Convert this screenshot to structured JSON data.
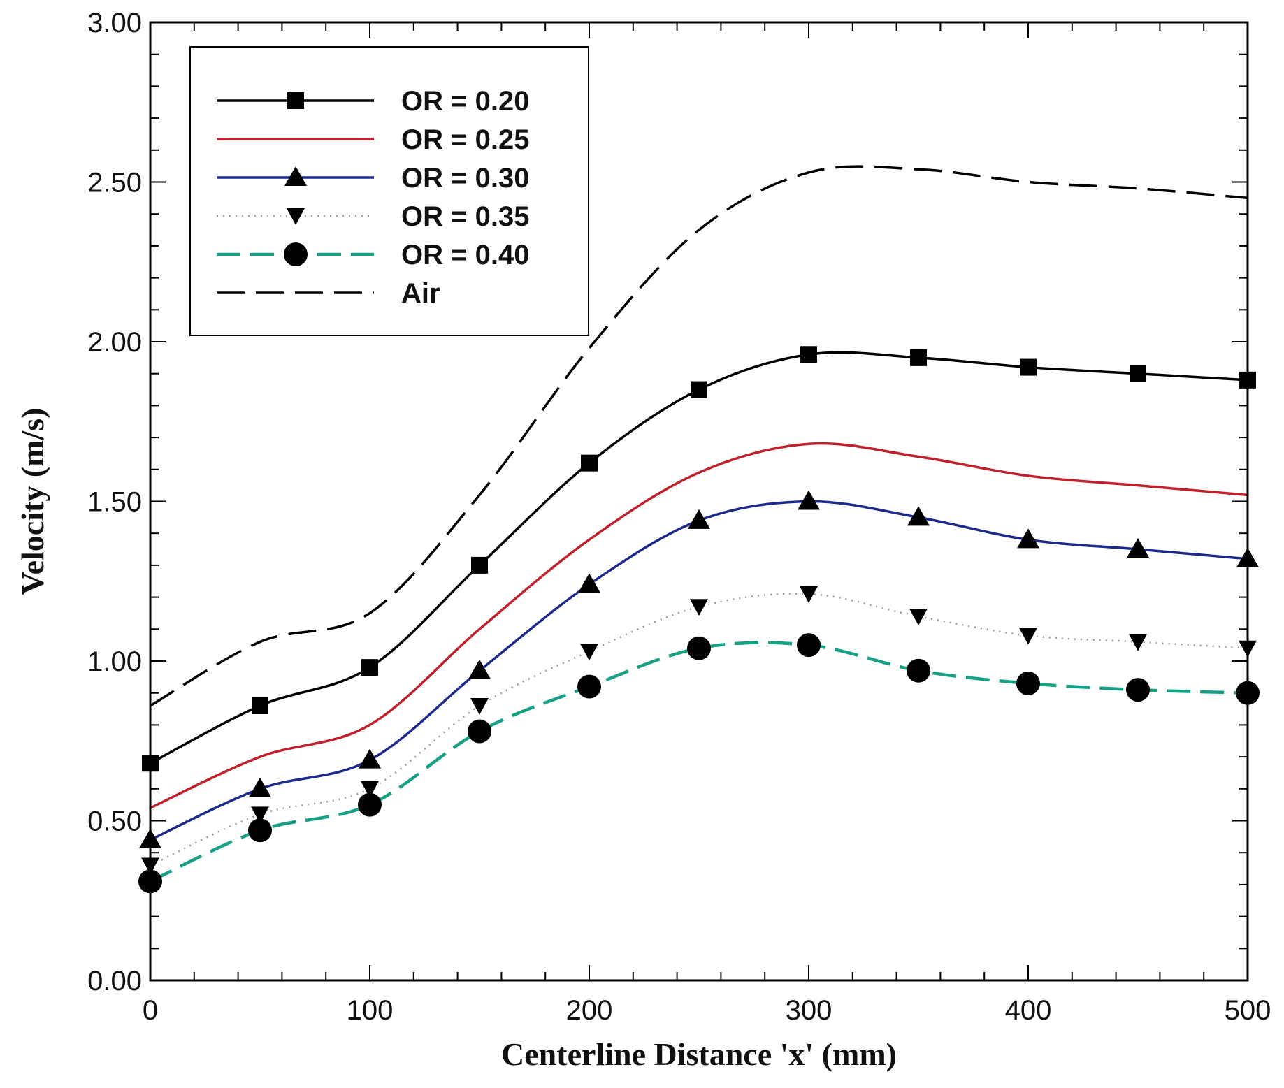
{
  "chart_data": {
    "type": "line",
    "xlabel": "Centerline Distance 'x' (mm)",
    "ylabel": "Velocity (m/s)",
    "xlim": [
      0,
      500
    ],
    "ylim": [
      0,
      3
    ],
    "x_ticks": [
      "0",
      "100",
      "200",
      "300",
      "400",
      "500"
    ],
    "y_ticks": [
      "0.00",
      "0.50",
      "1.00",
      "1.50",
      "2.00",
      "2.50",
      "3.00"
    ],
    "legend_position": "top-left",
    "grid": false,
    "x": [
      0,
      50,
      100,
      150,
      200,
      250,
      300,
      350,
      400,
      450,
      500
    ],
    "series": [
      {
        "name": "OR = 0.20",
        "color": "#000000",
        "marker": "square",
        "dash": "solid",
        "values": [
          0.68,
          0.86,
          0.98,
          1.3,
          1.62,
          1.85,
          1.96,
          1.95,
          1.92,
          1.9,
          1.88
        ]
      },
      {
        "name": "OR = 0.25",
        "color": "#c0202a",
        "marker": "none",
        "dash": "solid",
        "values": [
          0.54,
          0.7,
          0.8,
          1.1,
          1.38,
          1.59,
          1.68,
          1.64,
          1.58,
          1.55,
          1.52
        ]
      },
      {
        "name": "OR = 0.30",
        "color": "#1c2a8c",
        "marker": "triangle-up",
        "dash": "solid",
        "values": [
          0.44,
          0.6,
          0.69,
          0.97,
          1.24,
          1.44,
          1.5,
          1.45,
          1.38,
          1.35,
          1.32
        ]
      },
      {
        "name": "OR = 0.35",
        "color": "#9a9a9a",
        "marker": "triangle-down",
        "dash": "dotted",
        "values": [
          0.36,
          0.52,
          0.6,
          0.86,
          1.03,
          1.17,
          1.21,
          1.14,
          1.08,
          1.06,
          1.04
        ]
      },
      {
        "name": "OR = 0.40",
        "color": "#17a085",
        "marker": "circle",
        "dash": "dashed",
        "values": [
          0.31,
          0.47,
          0.55,
          0.78,
          0.92,
          1.04,
          1.05,
          0.97,
          0.93,
          0.91,
          0.9
        ]
      },
      {
        "name": "Air",
        "color": "#000000",
        "marker": "none",
        "dash": "longdash",
        "values": [
          0.86,
          1.06,
          1.15,
          1.52,
          1.98,
          2.35,
          2.53,
          2.54,
          2.5,
          2.48,
          2.45
        ]
      }
    ]
  }
}
